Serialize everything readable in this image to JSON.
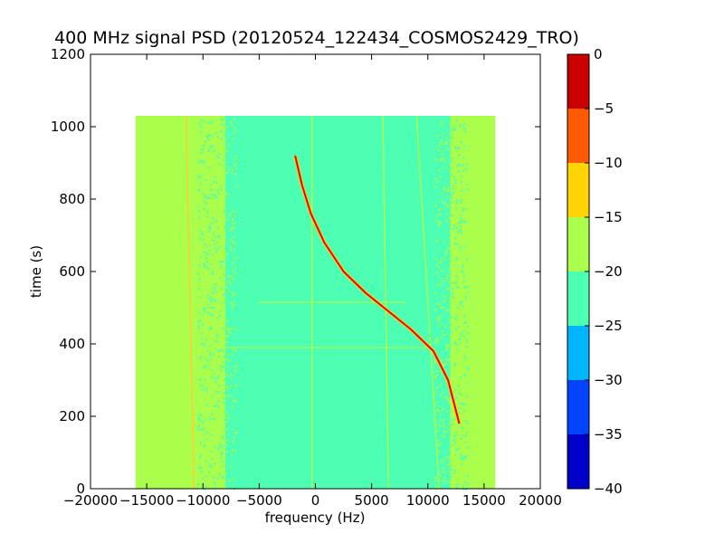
{
  "chart_data": {
    "type": "heatmap",
    "title": "400 MHz signal PSD (20120524_122434_COSMOS2429_TRO)",
    "xlabel": "frequency (Hz)",
    "ylabel": "time (s)",
    "xlim": [
      -20000,
      20000
    ],
    "ylim": [
      0,
      1200
    ],
    "xticks": [
      "−20000",
      "−15000",
      "−10000",
      "−5000",
      "0",
      "5000",
      "10000",
      "15000",
      "20000"
    ],
    "xtick_values": [
      -20000,
      -15000,
      -10000,
      -5000,
      0,
      5000,
      10000,
      15000,
      20000
    ],
    "yticks": [
      "0",
      "200",
      "400",
      "600",
      "800",
      "1000",
      "1200"
    ],
    "ytick_values": [
      0,
      200,
      400,
      600,
      800,
      1000,
      1200
    ],
    "data_extent": {
      "x": [
        -16000,
        16000
      ],
      "y": [
        0,
        1030
      ]
    },
    "background_band": {
      "x": [
        -16000,
        16000
      ],
      "level": "-20 to -15",
      "color": "#aaff4d"
    },
    "noise_floor_band": {
      "x": [
        -8000,
        12000
      ],
      "level": "-25 to -20",
      "color": "#4dffb2"
    },
    "signal_track": {
      "color": "#e60000",
      "points": [
        {
          "x": -1800,
          "y": 920
        },
        {
          "x": -1200,
          "y": 840
        },
        {
          "x": -400,
          "y": 760
        },
        {
          "x": 800,
          "y": 680
        },
        {
          "x": 2500,
          "y": 600
        },
        {
          "x": 4500,
          "y": 540
        },
        {
          "x": 6500,
          "y": 490
        },
        {
          "x": 8500,
          "y": 440
        },
        {
          "x": 10500,
          "y": 380
        },
        {
          "x": 11800,
          "y": 300
        },
        {
          "x": 12800,
          "y": 180
        }
      ]
    },
    "constant_lines": [
      {
        "x_start": -11500,
        "x_end": -10800,
        "y_start": 1030,
        "y_end": 0,
        "color": "#ffcc33"
      },
      {
        "x_start": -300,
        "x_end": -300,
        "y_start": 1030,
        "y_end": 0,
        "color": "#aaff4d"
      },
      {
        "x_start": 6000,
        "x_end": 6500,
        "y_start": 1030,
        "y_end": 0,
        "color": "#aaff4d"
      },
      {
        "x_start": 9000,
        "x_end": 11000,
        "y_start": 1030,
        "y_end": 0,
        "color": "#aaff4d"
      }
    ],
    "horizontal_lines": [
      {
        "y": 390,
        "x": [
          -10000,
          10000
        ],
        "color": "#aaff4d"
      },
      {
        "y": 515,
        "x": [
          -5000,
          8000
        ],
        "color": "#aaff4d"
      }
    ],
    "colorbar": {
      "range": [
        -40,
        0
      ],
      "ticks": [
        "0",
        "−5",
        "−10",
        "−15",
        "−20",
        "−25",
        "−30",
        "−35",
        "−40"
      ],
      "tick_values": [
        0,
        -5,
        -10,
        -15,
        -20,
        -25,
        -30,
        -35,
        -40
      ],
      "levels": [
        {
          "from": -40,
          "to": -35,
          "color": "#0000c8"
        },
        {
          "from": -35,
          "to": -30,
          "color": "#0044ff"
        },
        {
          "from": -30,
          "to": -25,
          "color": "#00b4ff"
        },
        {
          "from": -25,
          "to": -20,
          "color": "#4dffb2"
        },
        {
          "from": -20,
          "to": -15,
          "color": "#aaff4d"
        },
        {
          "from": -15,
          "to": -10,
          "color": "#ffd400"
        },
        {
          "from": -10,
          "to": -5,
          "color": "#ff5a00"
        },
        {
          "from": -5,
          "to": 0,
          "color": "#c80000"
        }
      ]
    },
    "grid": false,
    "legend": "none"
  }
}
